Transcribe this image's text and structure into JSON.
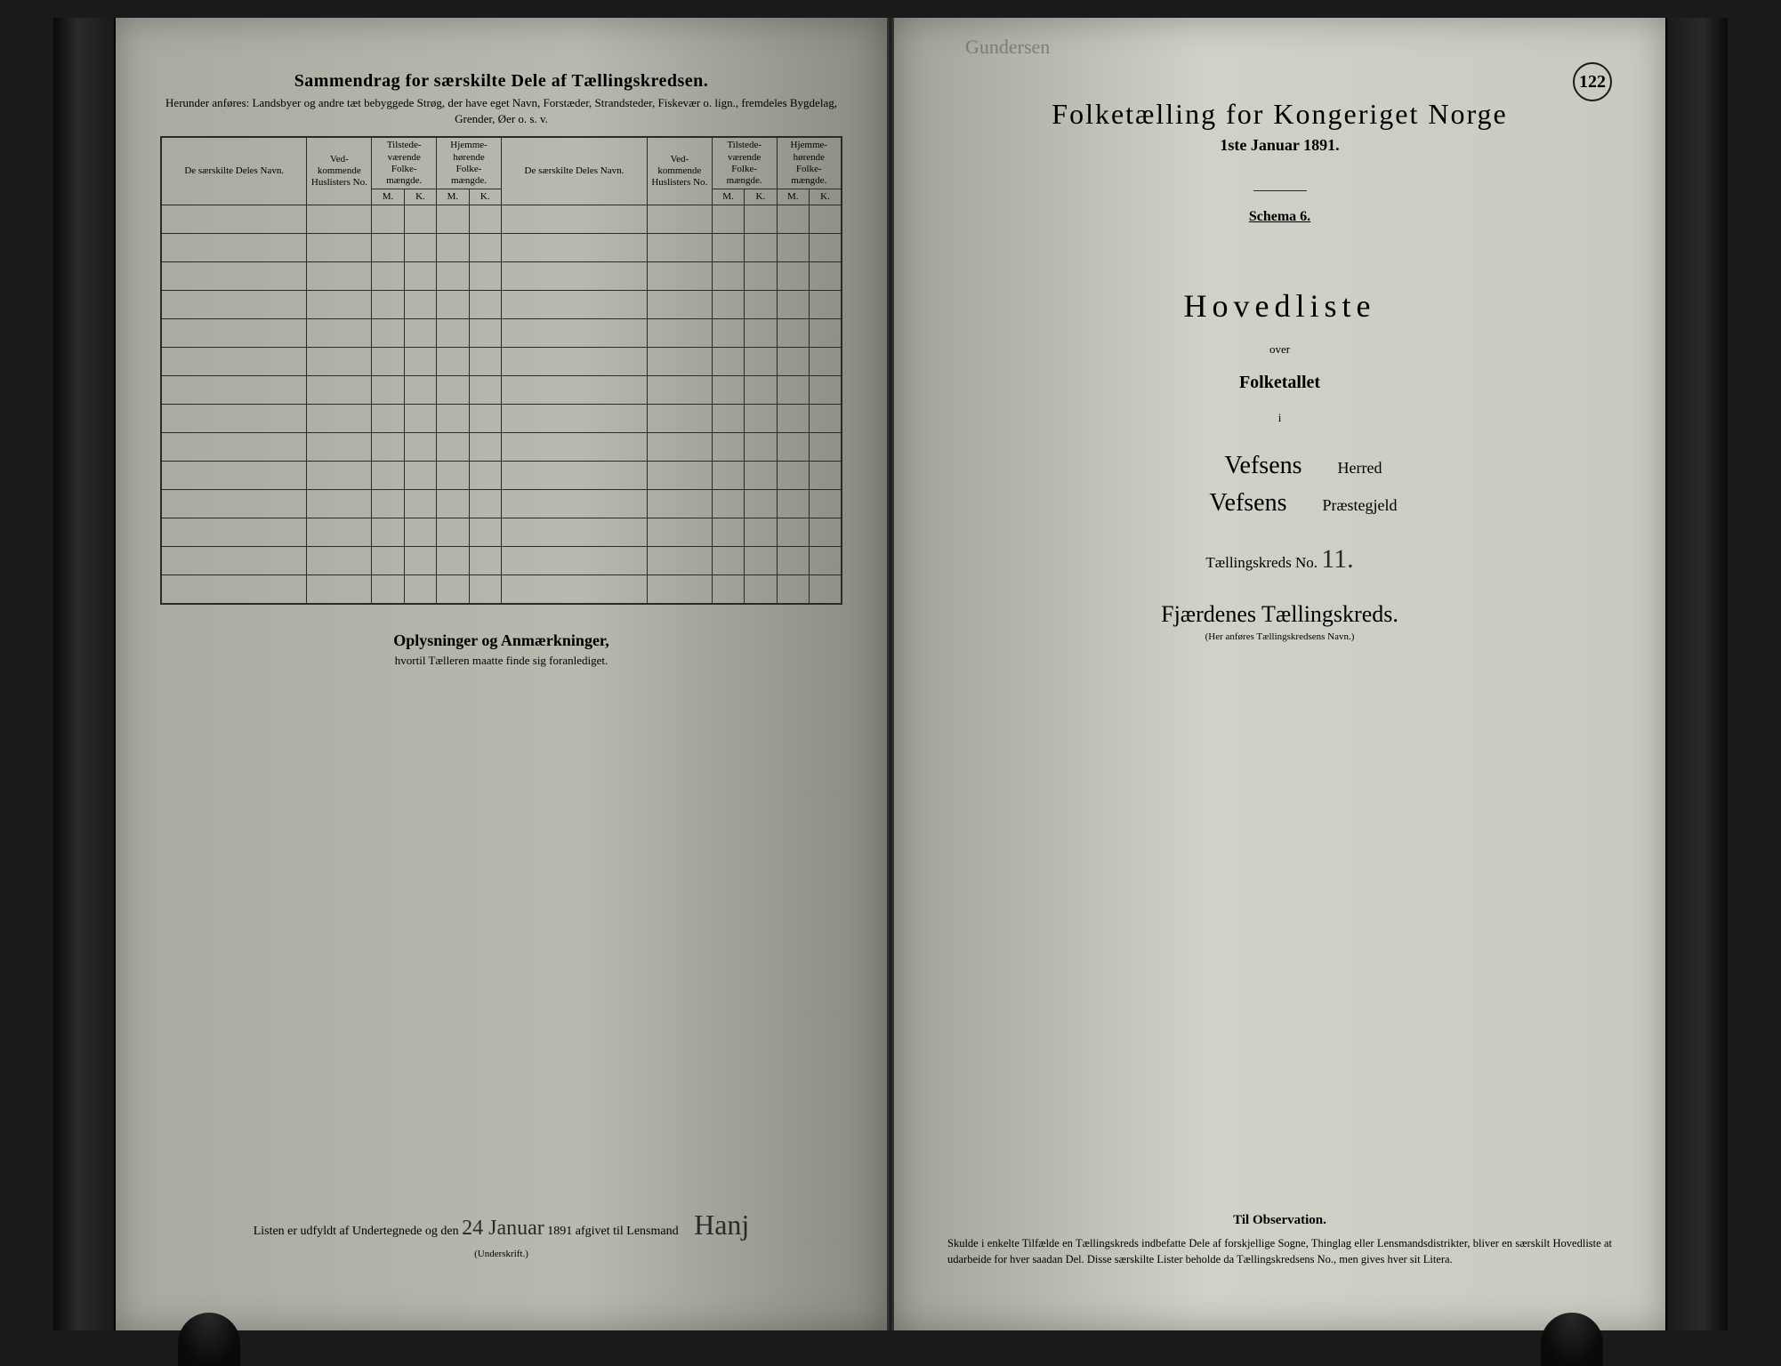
{
  "left_page": {
    "title": "Sammendrag for særskilte Dele af Tællingskredsen.",
    "subtitle": "Herunder anføres: Landsbyer og andre tæt bebyggede Strøg, der have eget Navn, Forstæder, Strandsteder, Fiskevær o. lign., fremdeles Bygdelag, Grender, Øer o. s. v.",
    "table": {
      "col_navn": "De særskilte Deles Navn.",
      "col_huslister": "Ved-kommende Huslisters No.",
      "col_tilstede": "Tilstede-værende Folke-mængde.",
      "col_hjemme": "Hjemme-hørende Folke-mængde.",
      "col_m": "M.",
      "col_k": "K.",
      "row_count": 14
    },
    "obs_title": "Oplysninger og Anmærkninger,",
    "obs_sub": "hvortil Tælleren maatte finde sig foranlediget.",
    "signature_text_1": "Listen er udfyldt af Undertegnede og den",
    "signature_date": "24 Januar",
    "signature_text_2": "1891 afgivet til Lensmand",
    "signature_name": "Hanj",
    "underwrite": "(Underskrift.)"
  },
  "right_page": {
    "hand_top": "Gundersen",
    "page_number": "122",
    "census_title": "Folketælling for Kongeriget Norge",
    "census_date": "1ste Januar 1891.",
    "schema": "Schema 6.",
    "hovedliste": "Hovedliste",
    "over": "over",
    "folketallet": "Folketallet",
    "small_i": "i",
    "herred_hand": "Vefsens",
    "herred_label": "Herred",
    "praeste_hand": "Vefsens",
    "praeste_label": "Præstegjeld",
    "kreds_label": "Tællingskreds No.",
    "kreds_no": "11.",
    "kreds_name": "Fjærdenes Tællingskreds.",
    "kreds_note": "(Her anføres Tællingskredsens Navn.)",
    "obs_title": "Til Observation.",
    "obs_body": "Skulde i enkelte Tilfælde en Tællingskreds indbefatte Dele af forskjellige Sogne, Thinglag eller Lensmandsdistrikter, bliver en særskilt Hovedliste at udarbeide for hver saadan Del. Disse særskilte Lister beholde da Tællingskredsens No., men gives hver sit Litera."
  },
  "colors": {
    "text": "#1a1a1a",
    "paper_left": "#b0b2a8",
    "paper_right": "#c8cac0",
    "border": "#2a2a2a"
  }
}
